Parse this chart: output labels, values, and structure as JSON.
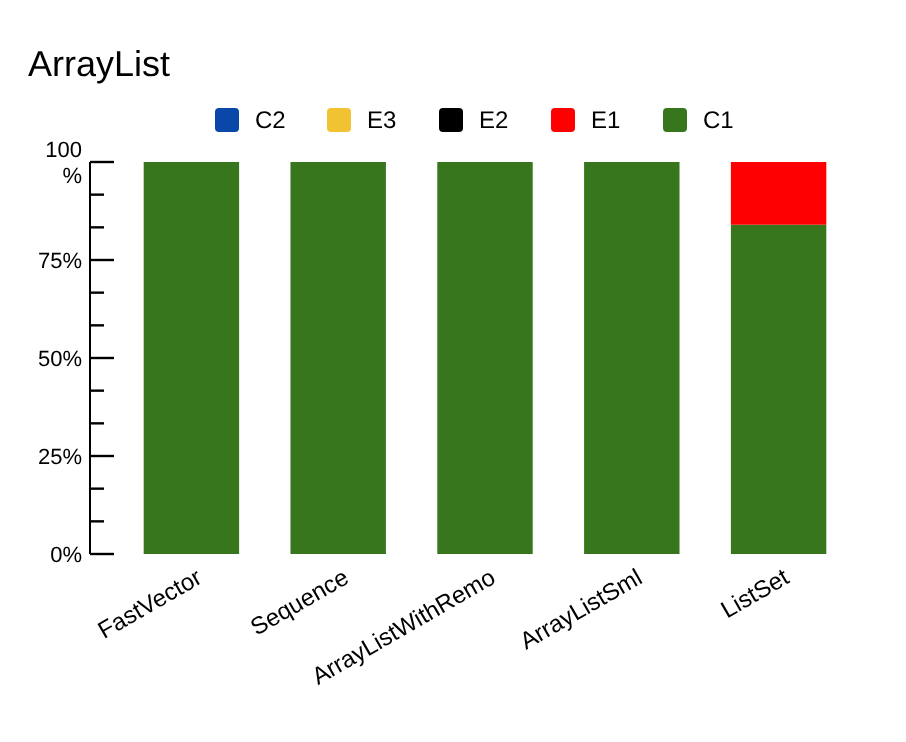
{
  "chart_data": {
    "type": "bar",
    "title": "ArrayList",
    "stacked": true,
    "categories": [
      "FastVector",
      "Sequence",
      "ArrayListWithRemo",
      "ArrayListSml",
      "ListSet"
    ],
    "series": [
      {
        "name": "C1",
        "color": "#38761d",
        "values": [
          100,
          100,
          100,
          100,
          84
        ]
      },
      {
        "name": "E1",
        "color": "#ff0000",
        "values": [
          0,
          0,
          0,
          0,
          16
        ]
      },
      {
        "name": "E2",
        "color": "#000000",
        "values": [
          0,
          0,
          0,
          0,
          0
        ]
      },
      {
        "name": "E3",
        "color": "#f1c232",
        "values": [
          0,
          0,
          0,
          0,
          0
        ]
      },
      {
        "name": "C2",
        "color": "#0b47a8",
        "values": [
          0,
          0,
          0,
          0,
          0
        ]
      }
    ],
    "ylim": [
      0,
      100
    ],
    "yticks": [
      {
        "value": 0,
        "label": "0%"
      },
      {
        "value": 8.33,
        "label": null
      },
      {
        "value": 16.67,
        "label": null
      },
      {
        "value": 25,
        "label": "25%"
      },
      {
        "value": 33.33,
        "label": null
      },
      {
        "value": 41.67,
        "label": null
      },
      {
        "value": 50,
        "label": "50%"
      },
      {
        "value": 58.33,
        "label": null
      },
      {
        "value": 66.67,
        "label": null
      },
      {
        "value": 75,
        "label": "75%"
      },
      {
        "value": 83.33,
        "label": null
      },
      {
        "value": 91.67,
        "label": null
      },
      {
        "value": 100,
        "label": "100 %"
      }
    ],
    "legend": "top",
    "grid": false
  }
}
